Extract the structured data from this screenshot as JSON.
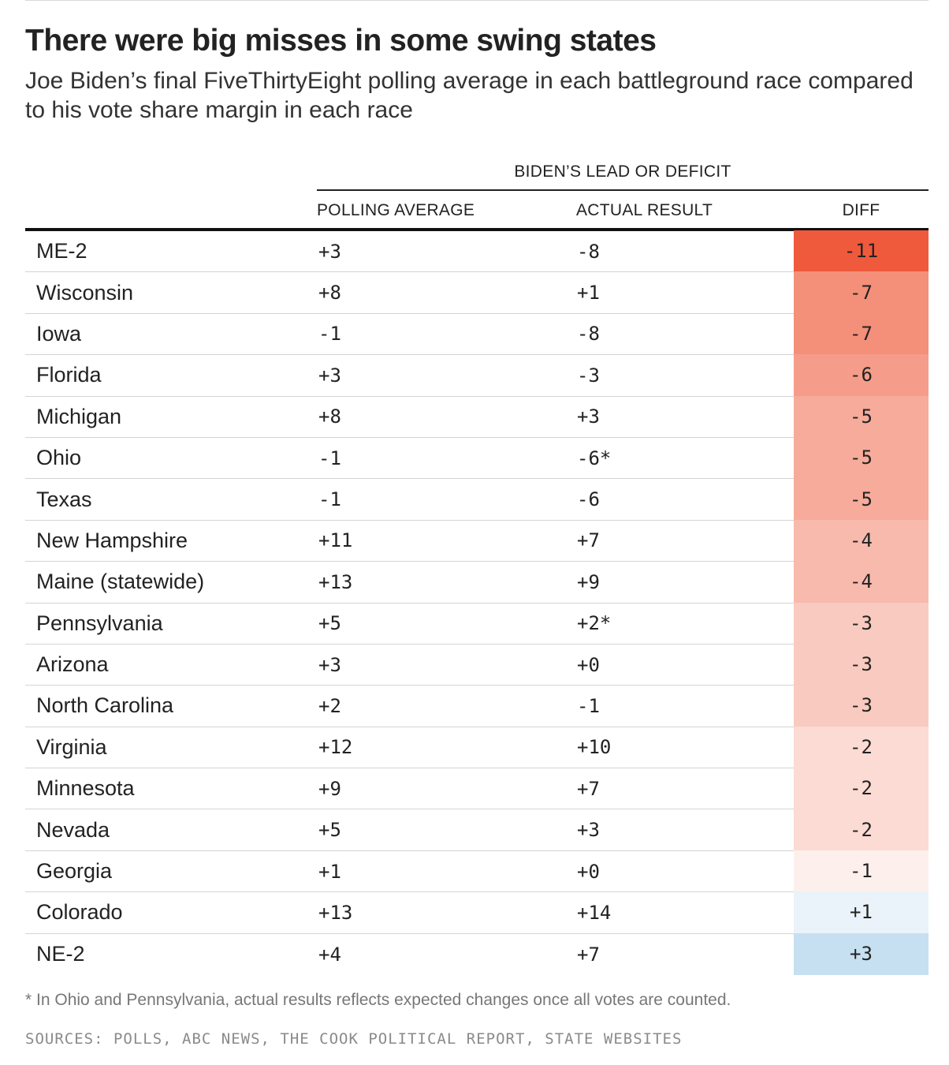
{
  "chart_data": {
    "type": "table",
    "title": "There were big misses in some swing states",
    "subtitle": "Joe Biden’s final FiveThirtyEight polling average in each battleground race compared to his vote share margin in each race",
    "group_header": "BIDEN’S LEAD OR DEFICIT",
    "columns": [
      "POLLING AVERAGE",
      "ACTUAL RESULT",
      "DIFF"
    ],
    "rows": [
      {
        "state": "ME-2",
        "poll": "+3",
        "actual": "-8",
        "diff": "-11",
        "diff_value": -11
      },
      {
        "state": "Wisconsin",
        "poll": "+8",
        "actual": "+1",
        "diff": "-7",
        "diff_value": -7
      },
      {
        "state": "Iowa",
        "poll": "-1",
        "actual": "-8",
        "diff": "-7",
        "diff_value": -7
      },
      {
        "state": "Florida",
        "poll": "+3",
        "actual": "-3",
        "diff": "-6",
        "diff_value": -6
      },
      {
        "state": "Michigan",
        "poll": "+8",
        "actual": "+3",
        "diff": "-5",
        "diff_value": -5
      },
      {
        "state": "Ohio",
        "poll": "-1",
        "actual": "-6*",
        "diff": "-5",
        "diff_value": -5
      },
      {
        "state": "Texas",
        "poll": "-1",
        "actual": "-6",
        "diff": "-5",
        "diff_value": -5
      },
      {
        "state": "New Hampshire",
        "poll": "+11",
        "actual": "+7",
        "diff": "-4",
        "diff_value": -4
      },
      {
        "state": "Maine (statewide)",
        "poll": "+13",
        "actual": "+9",
        "diff": "-4",
        "diff_value": -4
      },
      {
        "state": "Pennsylvania",
        "poll": "+5",
        "actual": "+2*",
        "diff": "-3",
        "diff_value": -3
      },
      {
        "state": "Arizona",
        "poll": "+3",
        "actual": "+0",
        "diff": "-3",
        "diff_value": -3
      },
      {
        "state": "North Carolina",
        "poll": "+2",
        "actual": "-1",
        "diff": "-3",
        "diff_value": -3
      },
      {
        "state": "Virginia",
        "poll": "+12",
        "actual": "+10",
        "diff": "-2",
        "diff_value": -2
      },
      {
        "state": "Minnesota",
        "poll": "+9",
        "actual": "+7",
        "diff": "-2",
        "diff_value": -2
      },
      {
        "state": "Nevada",
        "poll": "+5",
        "actual": "+3",
        "diff": "-2",
        "diff_value": -2
      },
      {
        "state": "Georgia",
        "poll": "+1",
        "actual": "+0",
        "diff": "-1",
        "diff_value": -1
      },
      {
        "state": "Colorado",
        "poll": "+13",
        "actual": "+14",
        "diff": "+1",
        "diff_value": 1
      },
      {
        "state": "NE-2",
        "poll": "+4",
        "actual": "+7",
        "diff": "+3",
        "diff_value": 3
      }
    ],
    "footnote": "* In Ohio and Pennsylvania, actual results reflects expected changes once all votes are counted.",
    "sources": "SOURCES: POLLS, ABC NEWS, THE COOK POLITICAL REPORT, STATE WEBSITES",
    "colors": {
      "neg_max": "#ef5a3c",
      "neg_light": "#fdf0ec",
      "pos_light": "#eaf3f9",
      "pos_max": "#c6e0f1"
    }
  }
}
